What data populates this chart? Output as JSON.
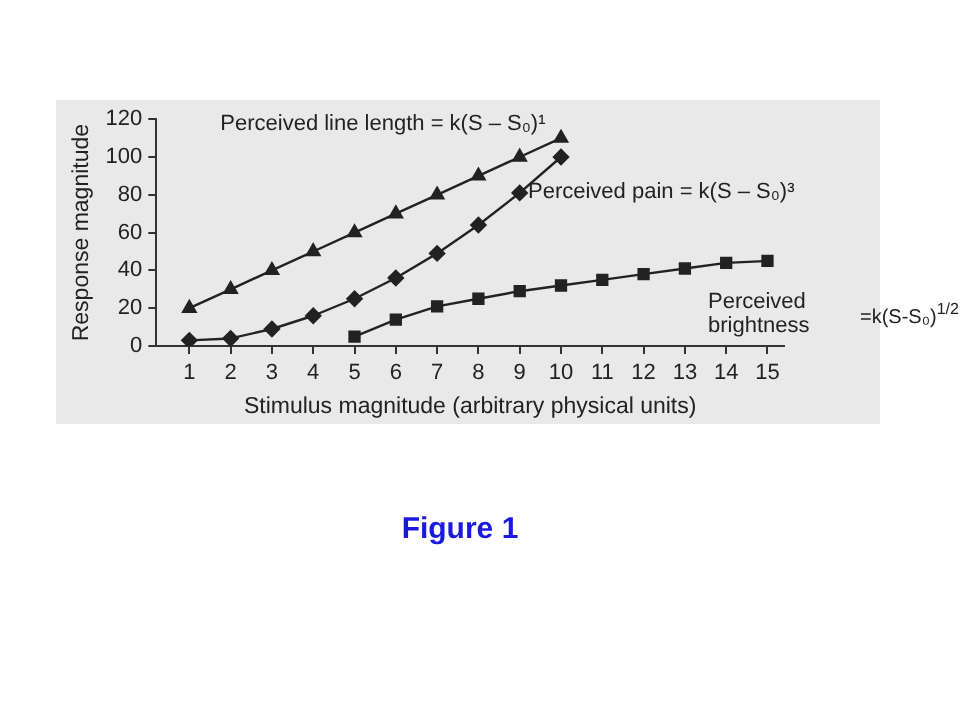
{
  "chart_data": {
    "type": "line",
    "xlabel": "Stimulus magnitude (arbitrary physical units)",
    "ylabel": "Response magnitude",
    "xlim": [
      0.2,
      15.4
    ],
    "xticks": [
      1,
      2,
      3,
      4,
      5,
      6,
      7,
      8,
      9,
      10,
      11,
      12,
      13,
      14,
      15
    ],
    "ylim": [
      0,
      120
    ],
    "yticks": [
      0,
      20,
      40,
      60,
      80,
      100,
      120
    ],
    "grid": false,
    "legend": false,
    "line_style": "solid",
    "series": [
      {
        "color": "#222222",
        "marker": "triangle",
        "x": [
          1,
          2,
          3,
          4,
          5,
          6,
          7,
          8,
          9,
          10
        ],
        "values": [
          20,
          30,
          40,
          50,
          60,
          70,
          80,
          90,
          100,
          110
        ]
      },
      {
        "color": "#222222",
        "marker": "diamond",
        "x": [
          1,
          2,
          3,
          4,
          5,
          6,
          7,
          8,
          9,
          10
        ],
        "values": [
          3,
          4,
          9,
          16,
          25,
          36,
          49,
          64,
          81,
          100
        ]
      },
      {
        "color": "#222222",
        "marker": "square",
        "x": [
          5,
          6,
          7,
          8,
          9,
          10,
          11,
          12,
          13,
          14,
          15
        ],
        "values": [
          5,
          14,
          21,
          25,
          29,
          32,
          35,
          38,
          41,
          44,
          45
        ]
      }
    ],
    "annotations": [
      "Perceived line length = k(S – S₀)¹",
      "Perceived pain = k(S – S₀)³",
      "Perceived brightness",
      "=k(S-S₀)$^{1/2}$",
      "Figure 1"
    ]
  }
}
